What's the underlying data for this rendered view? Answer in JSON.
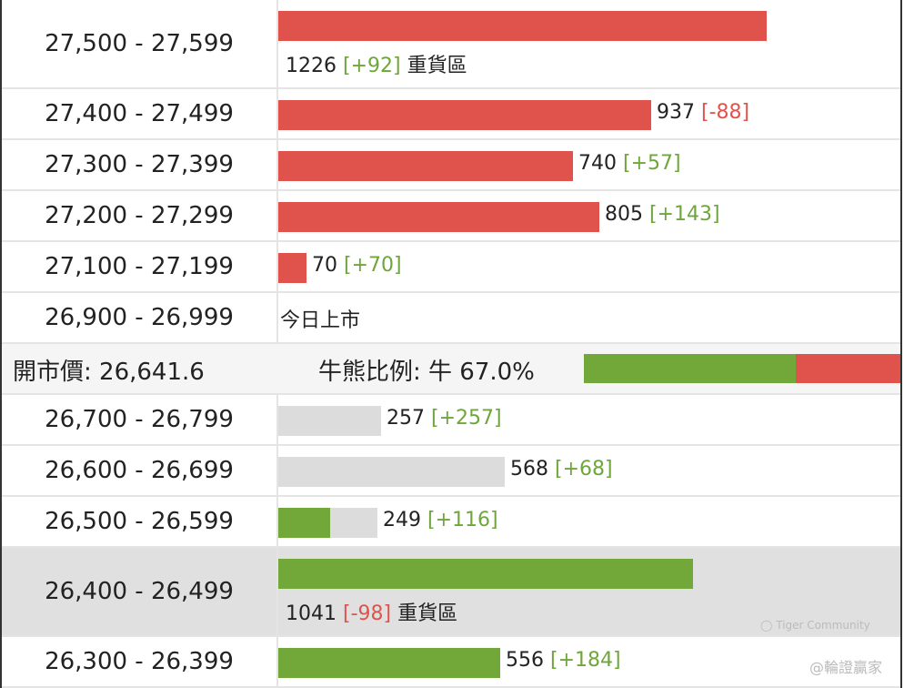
{
  "colors": {
    "bear": "#e0534d",
    "bull": "#72a83a",
    "neutral": "#dcdcdc"
  },
  "chart_data": {
    "type": "bar",
    "orientation": "horizontal",
    "rows": [
      {
        "range": "27,500 - 27,599",
        "side": "bear",
        "value": 1226,
        "change": "[+92]",
        "note": "重貨區",
        "tall": true
      },
      {
        "range": "27,400 - 27,499",
        "side": "bear",
        "value": 937,
        "change": "[-88]"
      },
      {
        "range": "27,300 - 27,399",
        "side": "bear",
        "value": 740,
        "change": "[+57]"
      },
      {
        "range": "27,200 - 27,299",
        "side": "bear",
        "value": 805,
        "change": "[+143]"
      },
      {
        "range": "27,100 - 27,199",
        "side": "bear",
        "value": 70,
        "change": "[+70]"
      },
      {
        "range": "26,900 - 26,999",
        "side": "text",
        "text": "今日上市"
      },
      {
        "open": true
      },
      {
        "range": "26,700 - 26,799",
        "side": "neutral",
        "value": 257,
        "change": "[+257]"
      },
      {
        "range": "26,600 - 26,699",
        "side": "neutral",
        "value": 568,
        "change": "[+68]"
      },
      {
        "range": "26,500 - 26,599",
        "side": "mixed",
        "value": 249,
        "bull_part": 130,
        "change": "[+116]"
      },
      {
        "range": "26,400 - 26,499",
        "side": "bull",
        "value": 1041,
        "change": "[-98]",
        "note": "重貨區",
        "tall": true,
        "highlight": true
      },
      {
        "range": "26,300 - 26,399",
        "side": "bull",
        "value": 556,
        "change": "[+184]"
      }
    ],
    "open_label": "開市價: 26,641.6",
    "ratio_label": "牛熊比例: 牛 67.0%",
    "bull_ratio": 0.67
  },
  "watermark": {
    "line1": "Tiger Community",
    "line2": "@輪證贏家"
  }
}
